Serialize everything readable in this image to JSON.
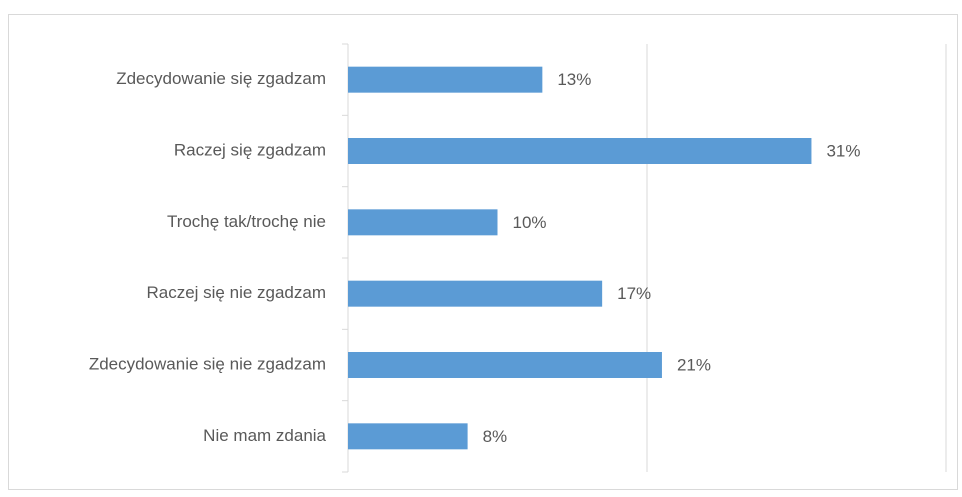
{
  "chart_data": {
    "type": "bar",
    "orientation": "horizontal",
    "categories": [
      "Zdecydowanie się zgadzam",
      "Raczej się zgadzam",
      "Trochę tak/trochę nie",
      "Raczej się nie zgadzam",
      "Zdecydowanie się nie zgadzam",
      "Nie mam zdania"
    ],
    "values": [
      13,
      31,
      10,
      17,
      21,
      8
    ],
    "value_labels": [
      "13%",
      "31%",
      "10%",
      "17%",
      "21%",
      "8%"
    ],
    "color": "#5b9bd5",
    "xlim": [
      0,
      40
    ],
    "xticks": [
      0,
      20,
      40
    ],
    "grid": true
  }
}
